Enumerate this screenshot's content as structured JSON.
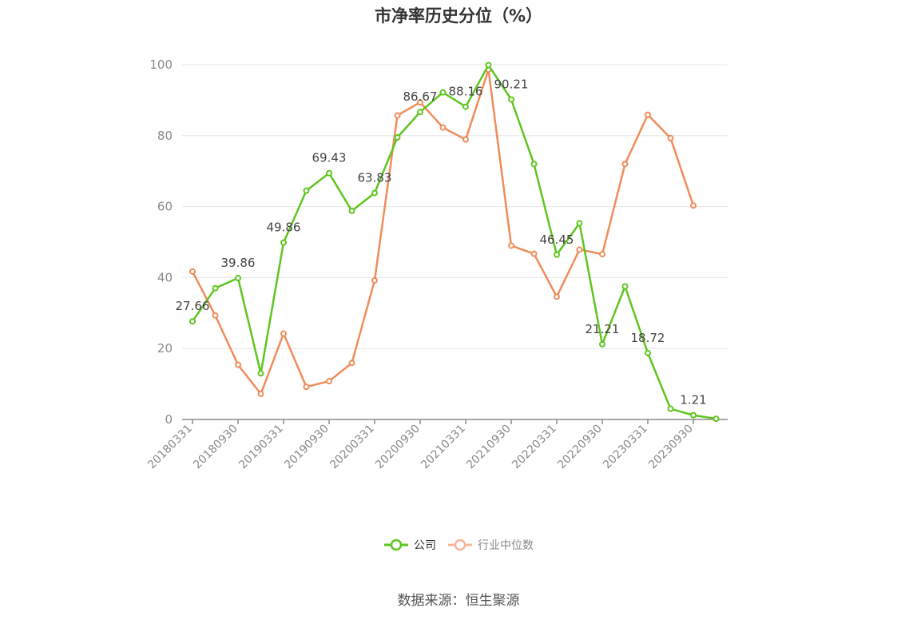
{
  "chart_data": {
    "type": "line",
    "title": "市净率历史分位（%）",
    "categories": [
      "20180331",
      "20180630",
      "20180930",
      "20181231",
      "20190331",
      "20190630",
      "20190930",
      "20191231",
      "20200331",
      "20200630",
      "20200930",
      "20201231",
      "20210331",
      "20210630",
      "20210930",
      "20211231",
      "20220331",
      "20220630",
      "20220930",
      "20221231",
      "20230331",
      "20230630",
      "20230930",
      "20231231"
    ],
    "x_tick_labels": [
      "20180331",
      "20180930",
      "20190331",
      "20190930",
      "20200331",
      "20200930",
      "20210331",
      "20210930",
      "20220331",
      "20220930",
      "20230331",
      "20230930"
    ],
    "ylim": [
      0,
      100
    ],
    "y_ticks": [
      0,
      20,
      40,
      60,
      80,
      100
    ],
    "grid": true,
    "legend_position": "bottom",
    "series": [
      {
        "name": "公司",
        "color": "#5ec61f",
        "values": [
          27.66,
          37.0,
          39.86,
          13.0,
          49.86,
          64.5,
          69.43,
          58.8,
          63.83,
          79.5,
          86.67,
          92.2,
          88.16,
          99.9,
          90.21,
          72.0,
          46.45,
          55.3,
          21.21,
          37.5,
          18.72,
          3.0,
          1.21,
          0.2
        ],
        "data_labels": {
          "0": "27.66",
          "2": "39.86",
          "4": "49.86",
          "6": "69.43",
          "8": "63.83",
          "10": "86.67",
          "12": "88.16",
          "14": "90.21",
          "16": "46.45",
          "18": "21.21",
          "20": "18.72",
          "22": "1.21"
        }
      },
      {
        "name": "行业中位数",
        "color": "#f08c5a",
        "values": [
          41.7,
          29.3,
          15.4,
          7.2,
          24.2,
          9.2,
          10.8,
          15.9,
          39.2,
          85.7,
          89.4,
          82.3,
          78.9,
          98.6,
          49.0,
          46.7,
          34.6,
          47.9,
          46.6,
          72.0,
          85.9,
          79.3,
          60.3,
          null
        ]
      }
    ]
  },
  "legend": {
    "items": [
      {
        "label": "公司",
        "color": "#5ec61f"
      },
      {
        "label": "行业中位数",
        "color": "#f5b598"
      }
    ]
  },
  "footer": {
    "source": "数据来源：恒生聚源"
  }
}
